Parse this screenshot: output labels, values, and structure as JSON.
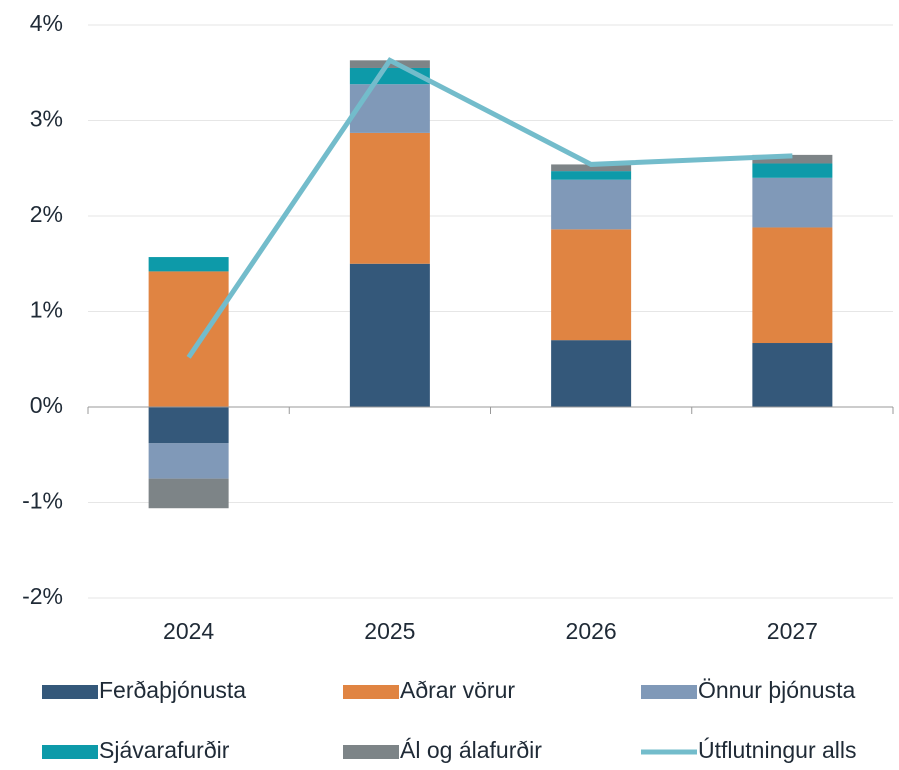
{
  "chart_data": {
    "type": "bar",
    "categories": [
      "2024",
      "2025",
      "2026",
      "2027"
    ],
    "stacked": true,
    "series": [
      {
        "name": "Ferðaþjónusta",
        "color": "#34587a",
        "values": [
          -0.38,
          1.5,
          0.7,
          0.67
        ]
      },
      {
        "name": "Aðrar vörur",
        "color": "#e08442",
        "values": [
          1.42,
          1.37,
          1.16,
          1.21
        ]
      },
      {
        "name": "Önnur þjónusta",
        "color": "#8099b8",
        "values": [
          -0.37,
          0.51,
          0.52,
          0.52
        ]
      },
      {
        "name": "Sjávarafurðir",
        "color": "#0d9aa9",
        "values": [
          0.15,
          0.17,
          0.09,
          0.15
        ]
      },
      {
        "name": "Ál og álafurðir",
        "color": "#7d8487",
        "values": [
          -0.31,
          0.08,
          0.07,
          0.09
        ]
      },
      {
        "name": "Útflutningur alls",
        "color": "#73bccb",
        "type": "line",
        "values": [
          0.52,
          3.63,
          2.54,
          2.63
        ]
      }
    ],
    "ylim": [
      -2,
      4
    ],
    "yticks": [
      {
        "value": -2,
        "label": "-2%"
      },
      {
        "value": -1,
        "label": "-1%"
      },
      {
        "value": 0,
        "label": "0%"
      },
      {
        "value": 1,
        "label": "1%"
      },
      {
        "value": 2,
        "label": "2%"
      },
      {
        "value": 3,
        "label": "3%"
      },
      {
        "value": 4,
        "label": "4%"
      }
    ],
    "grid": true
  }
}
